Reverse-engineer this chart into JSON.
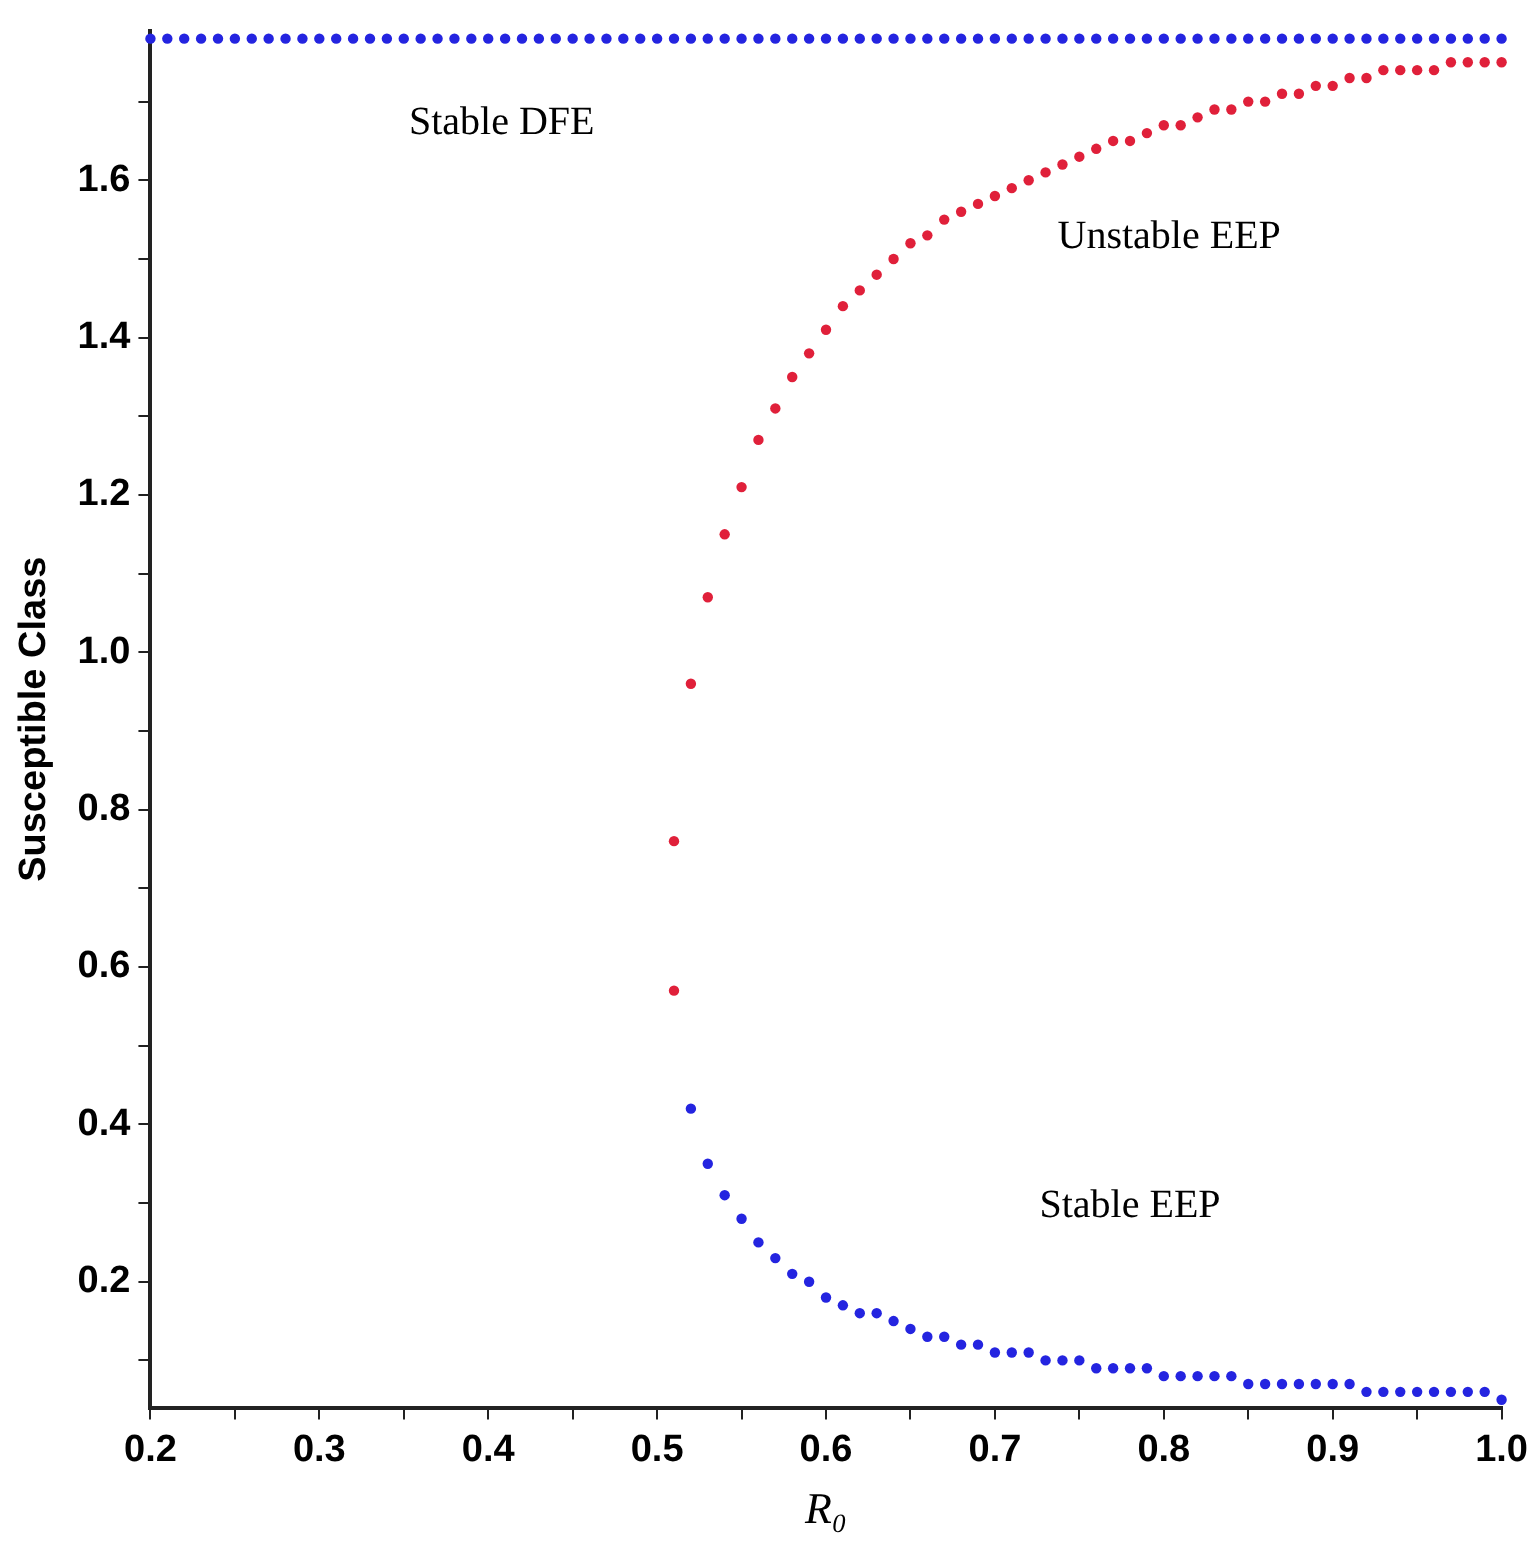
{
  "chart_data": {
    "type": "scatter",
    "xlabel": "R₀",
    "ylabel": "Susceptible Class",
    "xlim": [
      0.2,
      1.0
    ],
    "ylim": [
      0.04,
      1.79
    ],
    "xticks": [
      0.2,
      {
        "value": 0.25,
        "label": null
      },
      0.3,
      {
        "value": 0.35,
        "label": null
      },
      0.4,
      {
        "value": 0.45,
        "label": null
      },
      0.5,
      {
        "value": 0.55,
        "label": null
      },
      0.6,
      {
        "value": 0.65,
        "label": null
      },
      0.7,
      {
        "value": 0.75,
        "label": null
      },
      0.8,
      {
        "value": 0.85,
        "label": null
      },
      0.9,
      {
        "value": 0.95,
        "label": null
      },
      {
        "value": 1.0,
        "label": "1.0"
      }
    ],
    "yticks": [
      {
        "value": 0.1,
        "label": null
      },
      0.2,
      {
        "value": 0.3,
        "label": null
      },
      0.4,
      {
        "value": 0.5,
        "label": null
      },
      0.6,
      {
        "value": 0.7,
        "label": null
      },
      0.8,
      {
        "value": 0.9,
        "label": null
      },
      {
        "value": 1.0,
        "label": "1.0"
      },
      {
        "value": 1.1,
        "label": null
      },
      1.2,
      {
        "value": 1.3,
        "label": null
      },
      1.4,
      {
        "value": 1.5,
        "label": null
      },
      1.6,
      {
        "value": 1.7,
        "label": null
      }
    ],
    "grid": false,
    "legend": false,
    "marker": "circle",
    "series": [
      {
        "color": "#2424e0",
        "x": [
          0.2,
          0.21,
          0.22,
          0.23,
          0.24,
          0.25,
          0.26,
          0.27,
          0.28,
          0.29,
          0.3,
          0.31,
          0.32,
          0.33,
          0.34,
          0.35,
          0.36,
          0.37,
          0.38,
          0.39,
          0.4,
          0.41,
          0.42,
          0.43,
          0.44,
          0.45,
          0.46,
          0.47,
          0.48,
          0.49,
          0.5,
          0.51,
          0.52,
          0.53,
          0.54,
          0.55,
          0.56,
          0.57,
          0.58,
          0.59,
          0.6,
          0.61,
          0.62,
          0.63,
          0.64,
          0.65,
          0.66,
          0.67,
          0.68,
          0.69,
          0.7,
          0.71,
          0.72,
          0.73,
          0.74,
          0.75,
          0.76,
          0.77,
          0.78,
          0.79,
          0.8,
          0.81,
          0.82,
          0.83,
          0.84,
          0.85,
          0.86,
          0.87,
          0.88,
          0.89,
          0.9,
          0.91,
          0.92,
          0.93,
          0.94,
          0.95,
          0.96,
          0.97,
          0.98,
          0.99,
          1.0
        ],
        "values": [
          1.78,
          1.78,
          1.78,
          1.78,
          1.78,
          1.78,
          1.78,
          1.78,
          1.78,
          1.78,
          1.78,
          1.78,
          1.78,
          1.78,
          1.78,
          1.78,
          1.78,
          1.78,
          1.78,
          1.78,
          1.78,
          1.78,
          1.78,
          1.78,
          1.78,
          1.78,
          1.78,
          1.78,
          1.78,
          1.78,
          1.78,
          1.78,
          1.78,
          1.78,
          1.78,
          1.78,
          1.78,
          1.78,
          1.78,
          1.78,
          1.78,
          1.78,
          1.78,
          1.78,
          1.78,
          1.78,
          1.78,
          1.78,
          1.78,
          1.78,
          1.78,
          1.78,
          1.78,
          1.78,
          1.78,
          1.78,
          1.78,
          1.78,
          1.78,
          1.78,
          1.78,
          1.78,
          1.78,
          1.78,
          1.78,
          1.78,
          1.78,
          1.78,
          1.78,
          1.78,
          1.78,
          1.78,
          1.78,
          1.78,
          1.78,
          1.78,
          1.78,
          1.78,
          1.78,
          1.78,
          1.78
        ]
      },
      {
        "color": "#e0203a",
        "x": [
          0.51,
          0.51,
          0.52,
          0.53,
          0.54,
          0.55,
          0.56,
          0.57,
          0.58,
          0.59,
          0.6,
          0.61,
          0.62,
          0.63,
          0.64,
          0.65,
          0.66,
          0.67,
          0.68,
          0.69,
          0.7,
          0.71,
          0.72,
          0.73,
          0.74,
          0.75,
          0.76,
          0.77,
          0.78,
          0.79,
          0.8,
          0.81,
          0.82,
          0.83,
          0.84,
          0.85,
          0.86,
          0.87,
          0.88,
          0.89,
          0.9,
          0.91,
          0.92,
          0.93,
          0.94,
          0.95,
          0.96,
          0.97,
          0.98,
          0.99,
          1.0
        ],
        "values": [
          0.57,
          0.76,
          0.96,
          1.07,
          1.15,
          1.21,
          1.27,
          1.31,
          1.35,
          1.38,
          1.41,
          1.44,
          1.46,
          1.48,
          1.5,
          1.52,
          1.53,
          1.55,
          1.56,
          1.57,
          1.58,
          1.59,
          1.6,
          1.61,
          1.62,
          1.63,
          1.64,
          1.65,
          1.65,
          1.66,
          1.67,
          1.67,
          1.68,
          1.69,
          1.69,
          1.7,
          1.7,
          1.71,
          1.71,
          1.72,
          1.72,
          1.73,
          1.73,
          1.74,
          1.74,
          1.74,
          1.74,
          1.75,
          1.75,
          1.75,
          1.75
        ]
      },
      {
        "color": "#2424e0",
        "x": [
          0.52,
          0.53,
          0.54,
          0.55,
          0.56,
          0.57,
          0.58,
          0.59,
          0.6,
          0.61,
          0.62,
          0.63,
          0.64,
          0.65,
          0.66,
          0.67,
          0.68,
          0.69,
          0.7,
          0.71,
          0.72,
          0.73,
          0.74,
          0.75,
          0.76,
          0.77,
          0.78,
          0.79,
          0.8,
          0.81,
          0.82,
          0.83,
          0.84,
          0.85,
          0.86,
          0.87,
          0.88,
          0.89,
          0.9,
          0.91,
          0.92,
          0.93,
          0.94,
          0.95,
          0.96,
          0.97,
          0.98,
          0.99,
          1.0
        ],
        "values": [
          0.42,
          0.35,
          0.31,
          0.28,
          0.25,
          0.23,
          0.21,
          0.2,
          0.18,
          0.17,
          0.16,
          0.16,
          0.15,
          0.14,
          0.13,
          0.13,
          0.12,
          0.12,
          0.11,
          0.11,
          0.11,
          0.1,
          0.1,
          0.1,
          0.09,
          0.09,
          0.09,
          0.09,
          0.08,
          0.08,
          0.08,
          0.08,
          0.08,
          0.07,
          0.07,
          0.07,
          0.07,
          0.07,
          0.07,
          0.07,
          0.06,
          0.06,
          0.06,
          0.06,
          0.06,
          0.06,
          0.06,
          0.06,
          0.05
        ]
      }
    ],
    "annotations": [
      "Stable DFE",
      "Unstable EEP",
      "Stable EEP"
    ]
  }
}
